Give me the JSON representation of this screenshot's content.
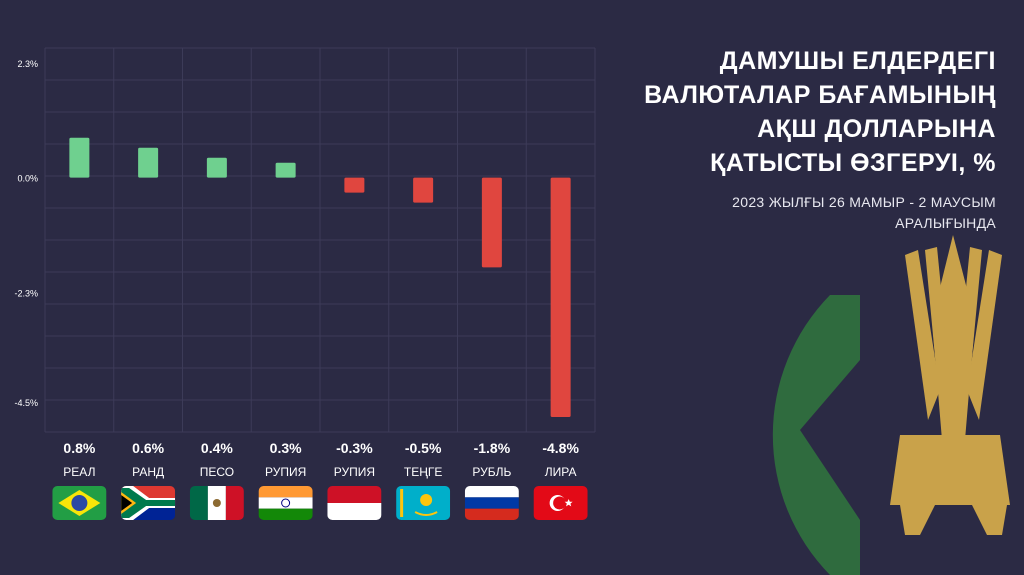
{
  "colors": {
    "background": "#2b2a44",
    "positive": "#6fd08f",
    "negative": "#e0463f",
    "grid": "#3c3b58",
    "text": "#ffffff",
    "emblem_green": "#2f6b3e",
    "emblem_gold": "#c9a24a"
  },
  "title": {
    "lines": [
      "ДАМУШЫ ЕЛДЕРДЕГІ",
      "ВАЛЮТАЛАР БАҒАМЫНЫҢ",
      "АҚШ ДОЛЛАРЫНА",
      "ҚАТЫСТЫ ӨЗГЕРУІ, %"
    ],
    "subtitle_lines": [
      "2023 ЖЫЛҒЫ 26 МАМЫР - 2 МАУСЫМ",
      "АРАЛЫҒЫНДА"
    ]
  },
  "emblem": {
    "icon": "national-emblem-icon"
  },
  "chart_data": {
    "type": "bar",
    "title": "ДАМУШЫ ЕЛДЕРДЕГІ ВАЛЮТАЛАР БАҒАМЫНЫҢ АҚШ ДОЛЛАРЫНА ҚАТЫСТЫ ӨЗГЕРУІ, %",
    "categories": [
      "РЕАЛ",
      "РАНД",
      "ПЕСО",
      "РУПИЯ",
      "РУПИЯ",
      "ТЕҢГЕ",
      "РУБЛЬ",
      "ЛИРА"
    ],
    "values": [
      0.8,
      0.6,
      0.4,
      0.3,
      -0.3,
      -0.5,
      -1.8,
      -4.8
    ],
    "value_labels": [
      "0.8%",
      "0.6%",
      "0.4%",
      "0.3%",
      "-0.3%",
      "-0.5%",
      "-1.8%",
      "-4.8%"
    ],
    "flags": [
      "brazil-flag-icon",
      "south-africa-flag-icon",
      "mexico-flag-icon",
      "india-flag-icon",
      "indonesia-flag-icon",
      "kazakhstan-flag-icon",
      "russia-flag-icon",
      "turkey-flag-icon"
    ],
    "y_ticks": [
      2.3,
      0.0,
      -2.3,
      -4.5
    ],
    "y_tick_labels": [
      "2.3%",
      "0.0%",
      "-2.3%",
      "-4.5%"
    ],
    "ylim": [
      -5.1,
      2.6
    ],
    "grid": true,
    "xlabel": "",
    "ylabel": ""
  }
}
